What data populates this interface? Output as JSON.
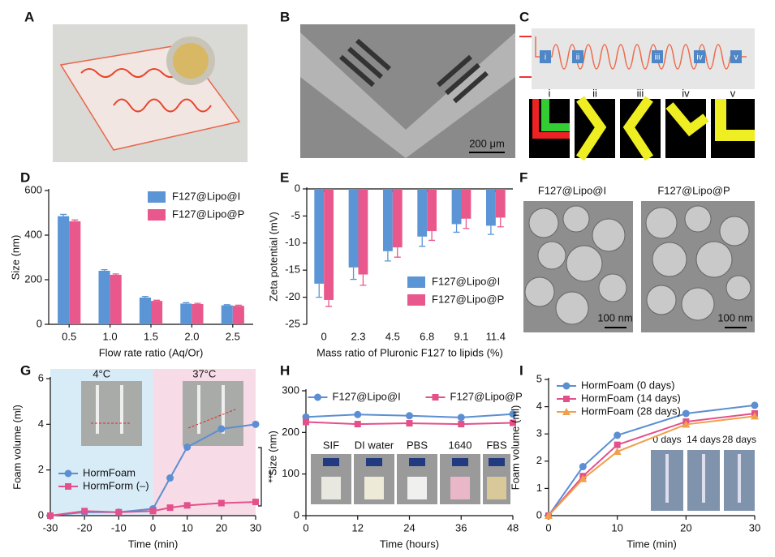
{
  "panels": [
    "A",
    "B",
    "C",
    "D",
    "E",
    "F",
    "G",
    "H",
    "I"
  ],
  "photos": {
    "scale_b": "200 μm",
    "stages_c": [
      "i",
      "ii",
      "iii",
      "iv",
      "v"
    ],
    "titles_f": [
      "F127@Lipo@I",
      "F127@Lipo@P"
    ],
    "scale_f": "100 nm",
    "significance_g": "***",
    "media_h": [
      "SIF",
      "DI water",
      "PBS",
      "1640",
      "FBS"
    ],
    "ages_i": [
      "0 days",
      "14 days",
      "28 days"
    ]
  },
  "chart_data": [
    {
      "type": "bar",
      "xlabel": "Flow rate ratio (Aq/Or)",
      "ylabel": "Size (nm)",
      "categories": [
        "0.5",
        "1.0",
        "1.5",
        "2.0",
        "2.5"
      ],
      "ylim": [
        0,
        600
      ],
      "yticks": [
        0,
        200,
        400,
        600
      ],
      "legend": "upper right",
      "series": [
        {
          "name": "F127@Lipo@I",
          "color": "#5b95d6",
          "values": [
            485,
            240,
            120,
            93,
            85
          ],
          "errors": [
            8,
            5,
            5,
            4,
            3
          ]
        },
        {
          "name": "F127@Lipo@P",
          "color": "#e9588c",
          "values": [
            462,
            222,
            105,
            91,
            83
          ],
          "errors": [
            6,
            4,
            3,
            3,
            3
          ]
        }
      ]
    },
    {
      "type": "bar",
      "xlabel": "Mass ratio of Pluronic F127 to lipids (%)",
      "ylabel": "Zeta potential (mV)",
      "categories": [
        "0",
        "2.3",
        "4.5",
        "6.8",
        "9.1",
        "11.4"
      ],
      "ylim": [
        -25,
        0
      ],
      "yticks": [
        0,
        -5,
        -10,
        -15,
        -20,
        -25
      ],
      "legend": "lower right",
      "series": [
        {
          "name": "F127@Lipo@I",
          "color": "#5b95d6",
          "values": [
            -17.5,
            -14.5,
            -11.5,
            -8.8,
            -6.5,
            -6.8
          ],
          "errors": [
            2.5,
            2.2,
            1.8,
            1.8,
            1.5,
            1.6
          ]
        },
        {
          "name": "F127@Lipo@P",
          "color": "#e9588c",
          "values": [
            -20.5,
            -15.8,
            -10.8,
            -7.8,
            -5.5,
            -5.3
          ],
          "errors": [
            1.2,
            2.0,
            1.8,
            1.7,
            1.8,
            1.7
          ]
        }
      ]
    },
    {
      "type": "line",
      "xlabel": "Time (min)",
      "ylabel": "Foam volume (ml)",
      "x": [
        -30,
        -20,
        -10,
        0,
        5,
        10,
        20,
        30
      ],
      "xlim": [
        -30,
        30
      ],
      "xticks": [
        -30,
        -20,
        -10,
        0,
        10,
        20,
        30
      ],
      "ylim": [
        0,
        6
      ],
      "yticks": [
        0,
        2,
        4,
        6
      ],
      "legend": "lower left",
      "bands": [
        {
          "from": -30,
          "to": 0,
          "color": "#d8ecf8",
          "label": "4°C"
        },
        {
          "from": 0,
          "to": 30,
          "color": "#f7dce7",
          "label": "37°C"
        }
      ],
      "series": [
        {
          "name": "HormFoam",
          "color": "#5b8fd2",
          "marker": "circle",
          "values": [
            0,
            0.15,
            0.15,
            0.3,
            1.65,
            3.0,
            3.8,
            4.0
          ]
        },
        {
          "name": "HormForm (–)",
          "color": "#e4508a",
          "marker": "square",
          "values": [
            0,
            0.2,
            0.15,
            0.2,
            0.35,
            0.45,
            0.55,
            0.6
          ]
        }
      ]
    },
    {
      "type": "line",
      "xlabel": "Time (hours)",
      "ylabel": "Size (nm)",
      "x": [
        0,
        12,
        24,
        36,
        48
      ],
      "xlim": [
        0,
        48
      ],
      "xticks": [
        0,
        12,
        24,
        36,
        48
      ],
      "ylim": [
        0,
        300
      ],
      "yticks": [
        0,
        100,
        200,
        300
      ],
      "legend": "upper center",
      "series": [
        {
          "name": "F127@Lipo@I",
          "color": "#5b8fd2",
          "marker": "circle",
          "values": [
            237,
            243,
            240,
            236,
            244
          ]
        },
        {
          "name": "F127@Lipo@P",
          "color": "#e4508a",
          "marker": "square",
          "values": [
            225,
            220,
            222,
            220,
            223
          ]
        }
      ]
    },
    {
      "type": "line",
      "xlabel": "Time (min)",
      "ylabel": "Foam volume (ml)",
      "x": [
        0,
        5,
        10,
        20,
        30
      ],
      "xlim": [
        0,
        30
      ],
      "xticks": [
        0,
        10,
        20,
        30
      ],
      "ylim": [
        0,
        5
      ],
      "yticks": [
        0,
        1,
        2,
        3,
        4,
        5
      ],
      "legend": "upper left",
      "series": [
        {
          "name": "HormFoam (0 days)",
          "color": "#5b8fd2",
          "marker": "circle",
          "values": [
            0,
            1.8,
            2.95,
            3.75,
            4.05
          ]
        },
        {
          "name": "HormFoam (14 days)",
          "color": "#e4508a",
          "marker": "square",
          "values": [
            0,
            1.45,
            2.6,
            3.45,
            3.75
          ]
        },
        {
          "name": "HormFoam (28 days)",
          "color": "#f0a04a",
          "marker": "triangle",
          "values": [
            0,
            1.35,
            2.35,
            3.35,
            3.65
          ]
        }
      ]
    }
  ]
}
